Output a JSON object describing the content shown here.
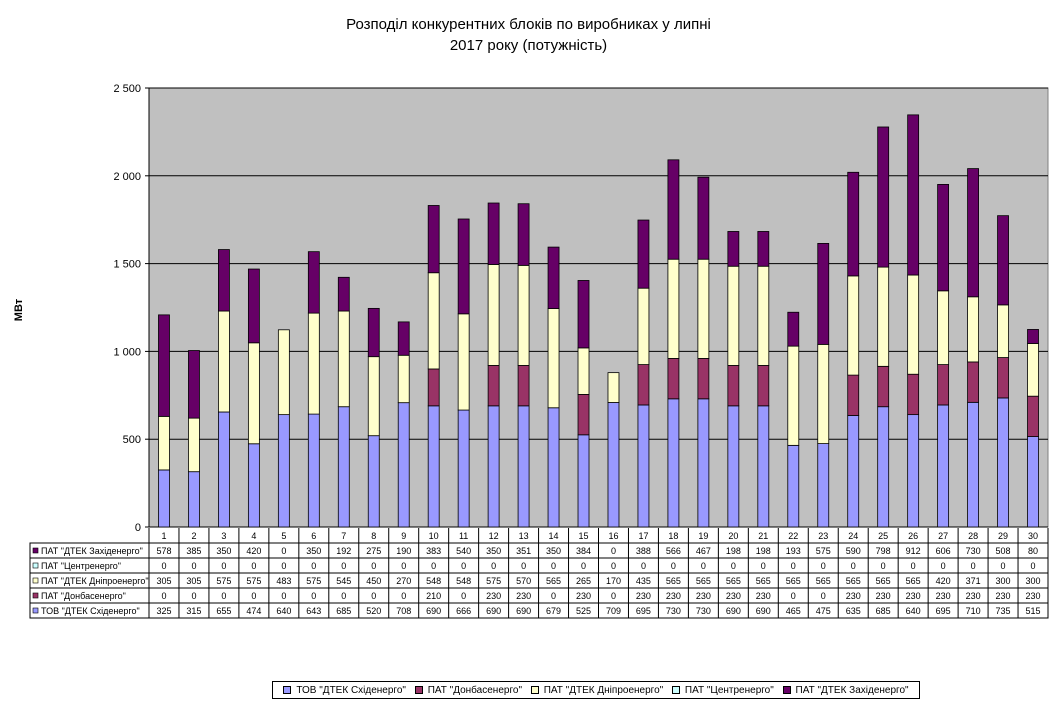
{
  "chart_data": {
    "type": "bar",
    "stacked": true,
    "title_line1": "Розподіл конкурентних  блоків по виробниках  у липні",
    "title_line2": "2017 року  (потужність)",
    "ylabel": "МВт",
    "ylim": [
      0,
      2500
    ],
    "yticks": [
      "0",
      "500",
      "1 000",
      "1 500",
      "2 000",
      "2 500"
    ],
    "ytick_values": [
      0,
      500,
      1000,
      1500,
      2000,
      2500
    ],
    "grid": true,
    "legend_position": "bottom",
    "categories": [
      "1",
      "2",
      "3",
      "4",
      "5",
      "6",
      "7",
      "8",
      "9",
      "10",
      "11",
      "12",
      "13",
      "14",
      "15",
      "16",
      "17",
      "18",
      "19",
      "20",
      "21",
      "22",
      "23",
      "24",
      "25",
      "26",
      "27",
      "28",
      "29",
      "30"
    ],
    "series": [
      {
        "name": "ТОВ \"ДТЕК Східенерго\"",
        "table_label": "ТОВ \"ДТЕК Східенерго\"",
        "color": "#9999ff",
        "values": [
          325,
          315,
          655,
          474,
          640,
          643,
          685,
          520,
          708,
          690,
          666,
          690,
          690,
          679,
          525,
          709,
          695,
          730,
          730,
          690,
          690,
          465,
          475,
          635,
          685,
          640,
          695,
          710,
          735,
          515
        ]
      },
      {
        "name": "ПАТ \"Донбасенерго\"",
        "table_label": "ПАТ \"Донбасенерго\"",
        "color": "#993366",
        "values": [
          0,
          0,
          0,
          0,
          0,
          0,
          0,
          0,
          0,
          210,
          0,
          230,
          230,
          0,
          230,
          0,
          230,
          230,
          230,
          230,
          230,
          0,
          0,
          230,
          230,
          230,
          230,
          230,
          230,
          230
        ]
      },
      {
        "name": "ПАТ \"ДТЕК Дніпроенерго\"",
        "table_label": "ПАТ \"ДТЕК Дніпроенерго\"",
        "color": "#ffffcc",
        "values": [
          305,
          305,
          575,
          575,
          483,
          575,
          545,
          450,
          270,
          548,
          548,
          575,
          570,
          565,
          265,
          170,
          435,
          565,
          565,
          565,
          565,
          565,
          565,
          565,
          565,
          565,
          420,
          371,
          300,
          300
        ]
      },
      {
        "name": "ПАТ \"Центренерго\"",
        "table_label": "ПАТ \"Центренерго\"",
        "color": "#ccffff",
        "values": [
          0,
          0,
          0,
          0,
          0,
          0,
          0,
          0,
          0,
          0,
          0,
          0,
          0,
          0,
          0,
          0,
          0,
          0,
          0,
          0,
          0,
          0,
          0,
          0,
          0,
          0,
          0,
          0,
          0,
          0
        ]
      },
      {
        "name": "ПАТ \"ДТЕК Західенерго\"",
        "table_label": "ПАТ \"ДТЕК Західенерго\"",
        "color": "#660066",
        "values": [
          578,
          385,
          350,
          420,
          0,
          350,
          192,
          275,
          190,
          383,
          540,
          350,
          351,
          350,
          384,
          0,
          388,
          566,
          467,
          198,
          198,
          193,
          575,
          590,
          798,
          912,
          606,
          730,
          508,
          80
        ]
      }
    ],
    "table_row_order": [
      4,
      3,
      2,
      1,
      0
    ]
  }
}
